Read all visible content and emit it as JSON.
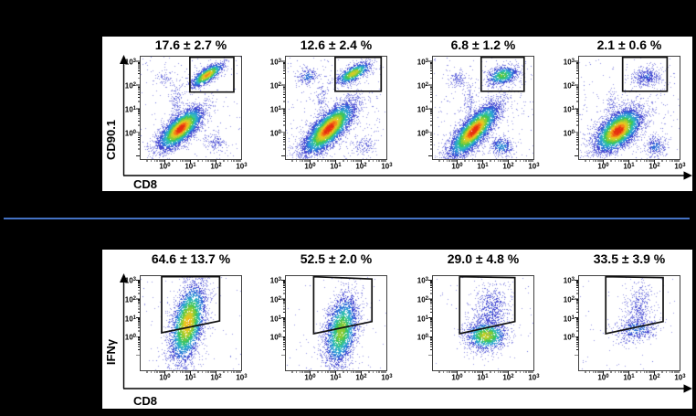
{
  "chart_data": {
    "type": "scatter",
    "figure_kind": "flow-cytometry-density-dot-plots",
    "colors": {
      "figure_bg": "#000000",
      "panel_bg": "#ffffff",
      "divider": "#4472c4",
      "box_border": "#404040",
      "tick": "#1a1a1a",
      "gate": "#101010",
      "text": "#000000",
      "axis_arrow": "#000000"
    },
    "palette": [
      [
        0.07,
        "#9191e4"
      ],
      [
        0.14,
        "#6a6fdd"
      ],
      [
        0.22,
        "#4346d0"
      ],
      [
        0.32,
        "#2f6fd8"
      ],
      [
        0.42,
        "#2fa0d4"
      ],
      [
        0.52,
        "#34bfae"
      ],
      [
        0.62,
        "#3cc45f"
      ],
      [
        0.72,
        "#8acb36"
      ],
      [
        0.8,
        "#c6ce2b"
      ],
      [
        0.87,
        "#edc31f"
      ],
      [
        0.93,
        "#f28c1a"
      ],
      [
        0.97,
        "#ee5a13"
      ],
      [
        2.0,
        "#e62f10"
      ]
    ],
    "cluster_fields": [
      "cx",
      "cy",
      "angle_deg",
      "sd_major",
      "sd_minor",
      "n",
      "peak"
    ],
    "panels": [
      {
        "id": "top",
        "xlabel": "CD8",
        "ylabel": "CD90.1",
        "x_axis": {
          "base": "10",
          "exponents": [
            "0",
            "1",
            "2",
            "3"
          ],
          "t0": 0.245,
          "dec": 0.25
        },
        "y_axis": {
          "base": "10",
          "exponents": [
            "0",
            "1",
            "2",
            "3"
          ],
          "t0": 0.265,
          "dec": 0.227
        },
        "plots": [
          {
            "title": "17.6 ± 2.7 %",
            "mean": 17.6,
            "sd": 2.7,
            "seed": 101,
            "gate": [
              [
                0.49,
                0.985
              ],
              [
                0.92,
                0.985
              ],
              [
                0.92,
                0.652
              ],
              [
                0.49,
                0.652
              ]
            ],
            "clusters": [
              [
                0.4,
                0.3,
                42,
                0.14,
                0.058,
                4200,
                1.0
              ],
              [
                0.66,
                0.815,
                33,
                0.095,
                0.032,
                1300,
                0.88
              ],
              [
                0.36,
                0.56,
                90,
                0.1,
                0.03,
                130,
                0.12
              ],
              [
                0.75,
                0.17,
                0,
                0.06,
                0.05,
                140,
                0.15
              ],
              [
                0.24,
                0.78,
                0,
                0.05,
                0.04,
                60,
                0.08
              ]
            ],
            "noise": 220
          },
          {
            "title": "12.6 ± 2.4 %",
            "mean": 12.6,
            "sd": 2.4,
            "seed": 102,
            "gate": [
              [
                0.49,
                0.985
              ],
              [
                0.94,
                0.985
              ],
              [
                0.94,
                0.66
              ],
              [
                0.49,
                0.66
              ]
            ],
            "clusters": [
              [
                0.43,
                0.3,
                45,
                0.17,
                0.065,
                4800,
                1.0
              ],
              [
                0.67,
                0.83,
                28,
                0.095,
                0.035,
                1100,
                0.78
              ],
              [
                0.22,
                0.8,
                20,
                0.055,
                0.04,
                170,
                0.3
              ],
              [
                0.36,
                0.58,
                90,
                0.09,
                0.03,
                120,
                0.1
              ],
              [
                0.78,
                0.14,
                0,
                0.055,
                0.05,
                120,
                0.12
              ]
            ],
            "noise": 260
          },
          {
            "title": "6.8 ± 1.2 %",
            "mean": 6.8,
            "sd": 1.2,
            "seed": 103,
            "gate": [
              [
                0.48,
                0.985
              ],
              [
                0.9,
                0.985
              ],
              [
                0.9,
                0.66
              ],
              [
                0.48,
                0.66
              ]
            ],
            "clusters": [
              [
                0.41,
                0.28,
                47,
                0.17,
                0.06,
                4800,
                1.0
              ],
              [
                0.69,
                0.81,
                15,
                0.08,
                0.045,
                800,
                0.62
              ],
              [
                0.68,
                0.13,
                5,
                0.06,
                0.05,
                320,
                0.35
              ],
              [
                0.25,
                0.78,
                0,
                0.05,
                0.045,
                130,
                0.12
              ],
              [
                0.37,
                0.56,
                90,
                0.09,
                0.03,
                110,
                0.1
              ]
            ],
            "noise": 260
          },
          {
            "title": "2.1 ± 0.6 %",
            "mean": 2.1,
            "sd": 0.6,
            "seed": 104,
            "gate": [
              [
                0.435,
                0.985
              ],
              [
                0.87,
                0.985
              ],
              [
                0.87,
                0.66
              ],
              [
                0.435,
                0.66
              ]
            ],
            "clusters": [
              [
                0.39,
                0.28,
                40,
                0.14,
                0.075,
                4800,
                1.0
              ],
              [
                0.67,
                0.8,
                10,
                0.075,
                0.05,
                420,
                0.22
              ],
              [
                0.76,
                0.13,
                0,
                0.055,
                0.05,
                260,
                0.28
              ],
              [
                0.33,
                0.52,
                90,
                0.08,
                0.03,
                90,
                0.08
              ]
            ],
            "noise": 230
          }
        ]
      },
      {
        "id": "bottom",
        "xlabel": "CD8",
        "ylabel": "IFNγ",
        "x_axis": {
          "base": "10",
          "exponents": [
            "0",
            "1",
            "2",
            "3"
          ],
          "t0": 0.245,
          "dec": 0.25
        },
        "y_axis": {
          "base": "10",
          "exponents": [
            "0",
            "1",
            "2",
            "3"
          ],
          "t0": 0.36,
          "dec": 0.196
        },
        "plots": [
          {
            "title": "64.6 ± 13.7 %",
            "mean": 64.6,
            "sd": 13.7,
            "seed": 201,
            "gate": [
              [
                0.214,
                0.984
              ],
              [
                0.78,
                0.984
              ],
              [
                0.78,
                0.524
              ],
              [
                0.214,
                0.4
              ]
            ],
            "clusters": [
              [
                0.47,
                0.5,
                78,
                0.22,
                0.08,
                3600,
                0.85
              ]
            ],
            "noise": 70
          },
          {
            "title": "52.5 ± 2.0 %",
            "mean": 52.5,
            "sd": 2.0,
            "seed": 202,
            "gate": [
              [
                0.28,
                0.985
              ],
              [
                0.85,
                0.96
              ],
              [
                0.85,
                0.517
              ],
              [
                0.28,
                0.39
              ]
            ],
            "clusters": [
              [
                0.55,
                0.42,
                80,
                0.2,
                0.08,
                2800,
                0.68
              ]
            ],
            "noise": 70
          },
          {
            "title": "29.0 ± 4.8 %",
            "mean": 29.0,
            "sd": 4.8,
            "seed": 203,
            "gate": [
              [
                0.27,
                0.985
              ],
              [
                0.81,
                0.975
              ],
              [
                0.81,
                0.517
              ],
              [
                0.27,
                0.39
              ]
            ],
            "clusters": [
              [
                0.53,
                0.37,
                0,
                0.105,
                0.078,
                1400,
                0.75
              ],
              [
                0.58,
                0.63,
                80,
                0.16,
                0.095,
                650,
                0.2
              ]
            ],
            "noise": 60
          },
          {
            "title": "33.5 ± 3.9 %",
            "mean": 33.5,
            "sd": 3.9,
            "seed": 204,
            "gate": [
              [
                0.27,
                0.985
              ],
              [
                0.83,
                0.975
              ],
              [
                0.83,
                0.517
              ],
              [
                0.27,
                0.39
              ]
            ],
            "clusters": [
              [
                0.57,
                0.44,
                10,
                0.115,
                0.075,
                520,
                0.28
              ],
              [
                0.6,
                0.68,
                85,
                0.13,
                0.07,
                330,
                0.14
              ]
            ],
            "noise": 60
          }
        ]
      }
    ]
  }
}
